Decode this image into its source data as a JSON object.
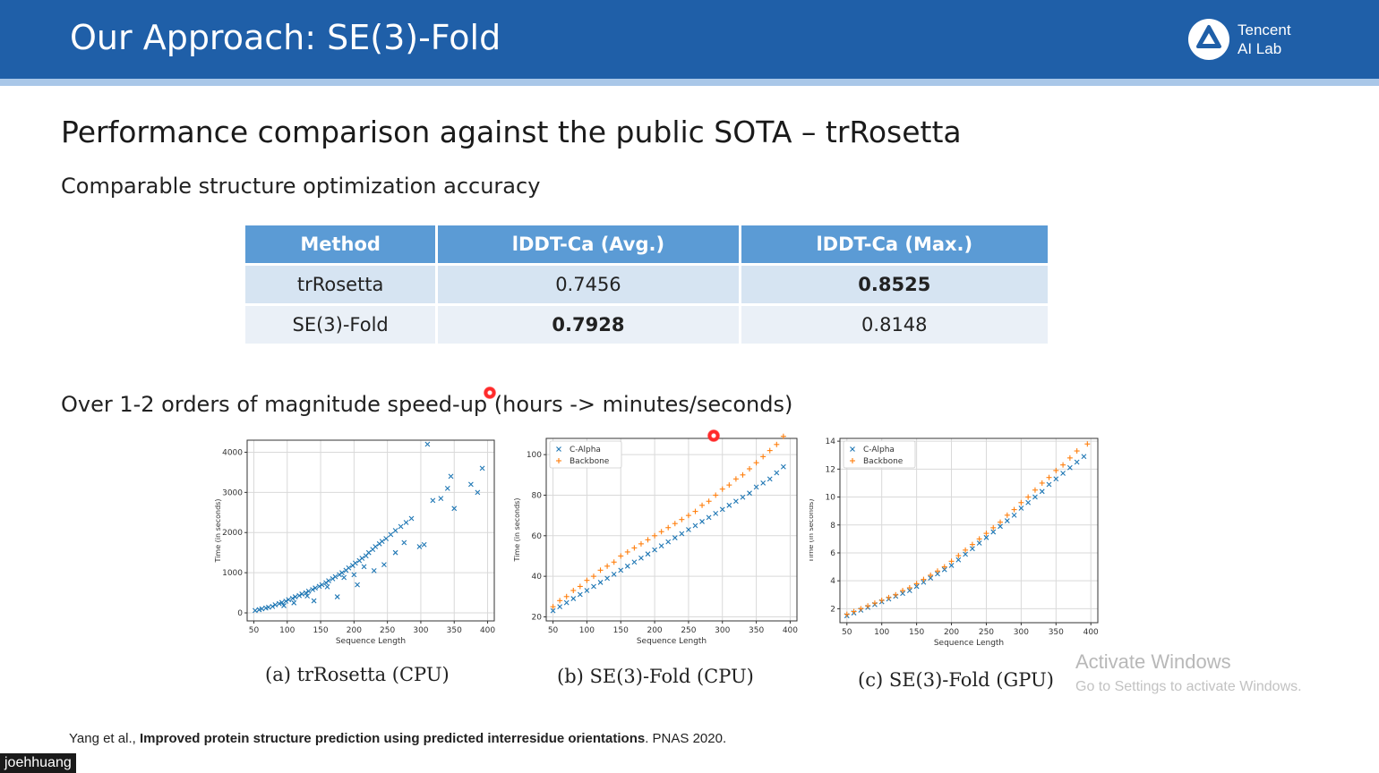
{
  "slide": {
    "title": "Our Approach: SE(3)-Fold",
    "logo_text_line1": "Tencent",
    "logo_text_line2": "AI Lab",
    "heading": "Performance comparison against the public SOTA – trRosetta",
    "subheading_accuracy": "Comparable structure optimization accuracy",
    "subheading_speed": "Over 1-2 orders of magnitude speed-up (hours -> minutes/seconds)",
    "table": {
      "headers": [
        "Method",
        "lDDT-Ca (Avg.)",
        "lDDT-Ca (Max.)"
      ],
      "rows": [
        [
          "trRosetta",
          "0.7456",
          "0.8525"
        ],
        [
          "SE(3)-Fold",
          "0.7928",
          "0.8148"
        ]
      ]
    },
    "captions": [
      "(a) trRosetta (CPU)",
      "(b) SE(3)-Fold (CPU)",
      "(c) SE(3)-Fold (GPU)"
    ],
    "reference_prefix": "Yang et al., ",
    "reference_title": "Improved protein structure prediction using predicted interresidue orientations",
    "reference_suffix": ". PNAS 2020.",
    "watermark_line1": "Activate Windows",
    "watermark_line2": "Go to Settings to activate Windows.",
    "presenter_name": "joehhuang",
    "colors": {
      "header": "#1f5fa8",
      "table_header": "#5b9bd5",
      "c_alpha": "#1f77b4",
      "backbone": "#ff7f0e"
    }
  },
  "chart_data": [
    {
      "type": "scatter",
      "xlabel": "Sequence Length",
      "ylabel": "Time (in seconds)",
      "xlim": [
        40,
        410
      ],
      "ylim": [
        -200,
        4300
      ],
      "xticks": [
        50,
        100,
        150,
        200,
        250,
        300,
        350,
        400
      ],
      "yticks": [
        0,
        1000,
        2000,
        3000,
        4000
      ],
      "grid": true,
      "series": [
        {
          "marker": "x",
          "color": "#1f77b4",
          "points": [
            [
              52,
              60
            ],
            [
              58,
              80
            ],
            [
              62,
              100
            ],
            [
              68,
              120
            ],
            [
              72,
              140
            ],
            [
              78,
              160
            ],
            [
              82,
              200
            ],
            [
              88,
              230
            ],
            [
              92,
              260
            ],
            [
              98,
              290
            ],
            [
              102,
              330
            ],
            [
              108,
              360
            ],
            [
              112,
              400
            ],
            [
              118,
              430
            ],
            [
              122,
              470
            ],
            [
              128,
              500
            ],
            [
              132,
              540
            ],
            [
              138,
              580
            ],
            [
              142,
              620
            ],
            [
              148,
              660
            ],
            [
              152,
              700
            ],
            [
              158,
              750
            ],
            [
              162,
              800
            ],
            [
              168,
              850
            ],
            [
              172,
              900
            ],
            [
              178,
              950
            ],
            [
              182,
              1000
            ],
            [
              188,
              1060
            ],
            [
              192,
              1120
            ],
            [
              198,
              1180
            ],
            [
              202,
              1240
            ],
            [
              208,
              1300
            ],
            [
              212,
              1360
            ],
            [
              218,
              1420
            ],
            [
              222,
              1500
            ],
            [
              228,
              1580
            ],
            [
              232,
              1650
            ],
            [
              238,
              1720
            ],
            [
              242,
              1780
            ],
            [
              248,
              1850
            ],
            [
              255,
              1950
            ],
            [
              262,
              2050
            ],
            [
              270,
              2150
            ],
            [
              278,
              2250
            ],
            [
              286,
              2350
            ],
            [
              205,
              700
            ],
            [
              215,
              1150
            ],
            [
              230,
              1050
            ],
            [
              245,
              1200
            ],
            [
              262,
              1500
            ],
            [
              275,
              1750
            ],
            [
              298,
              1650
            ],
            [
              305,
              1700
            ],
            [
              310,
              4200
            ],
            [
              318,
              2800
            ],
            [
              330,
              2850
            ],
            [
              340,
              3100
            ],
            [
              345,
              3400
            ],
            [
              350,
              2600
            ],
            [
              375,
              3200
            ],
            [
              385,
              3000
            ],
            [
              392,
              3600
            ],
            [
              95,
              180
            ],
            [
              130,
              420
            ],
            [
              160,
              650
            ],
            [
              185,
              880
            ],
            [
              175,
              400
            ],
            [
              140,
              300
            ],
            [
              110,
              250
            ],
            [
              200,
              950
            ]
          ]
        }
      ]
    },
    {
      "type": "scatter",
      "xlabel": "Sequence Length",
      "ylabel": "Time (in seconds)",
      "xlim": [
        40,
        410
      ],
      "ylim": [
        18,
        108
      ],
      "xticks": [
        50,
        100,
        150,
        200,
        250,
        300,
        350,
        400
      ],
      "yticks": [
        20,
        40,
        60,
        80,
        100
      ],
      "grid": true,
      "legend": [
        "C-Alpha",
        "Backbone"
      ],
      "legend_position": "top-left",
      "series": [
        {
          "name": "C-Alpha",
          "marker": "x",
          "color": "#1f77b4",
          "points": [
            [
              50,
              23
            ],
            [
              60,
              25
            ],
            [
              70,
              27
            ],
            [
              80,
              29
            ],
            [
              90,
              31
            ],
            [
              100,
              33
            ],
            [
              110,
              35
            ],
            [
              120,
              37
            ],
            [
              130,
              39
            ],
            [
              140,
              41
            ],
            [
              150,
              43
            ],
            [
              160,
              45
            ],
            [
              170,
              47
            ],
            [
              180,
              49
            ],
            [
              190,
              51
            ],
            [
              200,
              53
            ],
            [
              210,
              55
            ],
            [
              220,
              57
            ],
            [
              230,
              59
            ],
            [
              240,
              61
            ],
            [
              250,
              63
            ],
            [
              260,
              65
            ],
            [
              270,
              67
            ],
            [
              280,
              69
            ],
            [
              290,
              71
            ],
            [
              300,
              73
            ],
            [
              310,
              75
            ],
            [
              320,
              77
            ],
            [
              330,
              79
            ],
            [
              340,
              81
            ],
            [
              350,
              84
            ],
            [
              360,
              86
            ],
            [
              370,
              88
            ],
            [
              380,
              91
            ],
            [
              390,
              94
            ]
          ]
        },
        {
          "name": "Backbone",
          "marker": "+",
          "color": "#ff7f0e",
          "points": [
            [
              50,
              25
            ],
            [
              60,
              28
            ],
            [
              70,
              30
            ],
            [
              80,
              33
            ],
            [
              90,
              35
            ],
            [
              100,
              38
            ],
            [
              110,
              40
            ],
            [
              120,
              43
            ],
            [
              130,
              45
            ],
            [
              140,
              47
            ],
            [
              150,
              50
            ],
            [
              160,
              52
            ],
            [
              170,
              54
            ],
            [
              180,
              56
            ],
            [
              190,
              58
            ],
            [
              200,
              60
            ],
            [
              210,
              62
            ],
            [
              220,
              64
            ],
            [
              230,
              66
            ],
            [
              240,
              68
            ],
            [
              250,
              70
            ],
            [
              260,
              72
            ],
            [
              270,
              75
            ],
            [
              280,
              77
            ],
            [
              290,
              80
            ],
            [
              300,
              83
            ],
            [
              310,
              85
            ],
            [
              320,
              88
            ],
            [
              330,
              90
            ],
            [
              340,
              93
            ],
            [
              350,
              96
            ],
            [
              360,
              99
            ],
            [
              370,
              102
            ],
            [
              380,
              105
            ],
            [
              390,
              109
            ]
          ]
        }
      ]
    },
    {
      "type": "scatter",
      "xlabel": "Sequence Length",
      "ylabel": "Time (in seconds)",
      "xlim": [
        40,
        410
      ],
      "ylim": [
        1,
        14.2
      ],
      "xticks": [
        50,
        100,
        150,
        200,
        250,
        300,
        350,
        400
      ],
      "yticks": [
        2,
        4,
        6,
        8,
        10,
        12,
        14
      ],
      "grid": true,
      "legend": [
        "C-Alpha",
        "Backbone"
      ],
      "legend_position": "top-left",
      "series": [
        {
          "name": "C-Alpha",
          "marker": "x",
          "color": "#1f77b4",
          "points": [
            [
              50,
              1.5
            ],
            [
              60,
              1.7
            ],
            [
              70,
              1.9
            ],
            [
              80,
              2.1
            ],
            [
              90,
              2.3
            ],
            [
              100,
              2.5
            ],
            [
              110,
              2.7
            ],
            [
              120,
              2.9
            ],
            [
              130,
              3.1
            ],
            [
              140,
              3.3
            ],
            [
              150,
              3.6
            ],
            [
              160,
              3.9
            ],
            [
              170,
              4.2
            ],
            [
              180,
              4.5
            ],
            [
              190,
              4.8
            ],
            [
              200,
              5.1
            ],
            [
              210,
              5.5
            ],
            [
              220,
              5.9
            ],
            [
              230,
              6.3
            ],
            [
              240,
              6.7
            ],
            [
              250,
              7.1
            ],
            [
              260,
              7.5
            ],
            [
              270,
              7.9
            ],
            [
              280,
              8.3
            ],
            [
              290,
              8.7
            ],
            [
              300,
              9.2
            ],
            [
              310,
              9.6
            ],
            [
              320,
              10.0
            ],
            [
              330,
              10.4
            ],
            [
              340,
              10.9
            ],
            [
              350,
              11.3
            ],
            [
              360,
              11.7
            ],
            [
              370,
              12.1
            ],
            [
              380,
              12.5
            ],
            [
              390,
              12.9
            ]
          ]
        },
        {
          "name": "Backbone",
          "marker": "+",
          "color": "#ff7f0e",
          "points": [
            [
              50,
              1.6
            ],
            [
              60,
              1.8
            ],
            [
              70,
              2.0
            ],
            [
              80,
              2.2
            ],
            [
              90,
              2.4
            ],
            [
              100,
              2.6
            ],
            [
              110,
              2.8
            ],
            [
              120,
              3.0
            ],
            [
              130,
              3.3
            ],
            [
              140,
              3.5
            ],
            [
              150,
              3.8
            ],
            [
              160,
              4.1
            ],
            [
              170,
              4.4
            ],
            [
              180,
              4.7
            ],
            [
              190,
              5.0
            ],
            [
              200,
              5.4
            ],
            [
              210,
              5.8
            ],
            [
              220,
              6.2
            ],
            [
              230,
              6.6
            ],
            [
              240,
              7.0
            ],
            [
              250,
              7.4
            ],
            [
              260,
              7.8
            ],
            [
              270,
              8.2
            ],
            [
              280,
              8.7
            ],
            [
              290,
              9.1
            ],
            [
              300,
              9.6
            ],
            [
              310,
              10.0
            ],
            [
              320,
              10.5
            ],
            [
              330,
              11.0
            ],
            [
              340,
              11.4
            ],
            [
              350,
              11.9
            ],
            [
              360,
              12.3
            ],
            [
              370,
              12.8
            ],
            [
              380,
              13.3
            ],
            [
              395,
              13.8
            ]
          ]
        }
      ]
    }
  ]
}
